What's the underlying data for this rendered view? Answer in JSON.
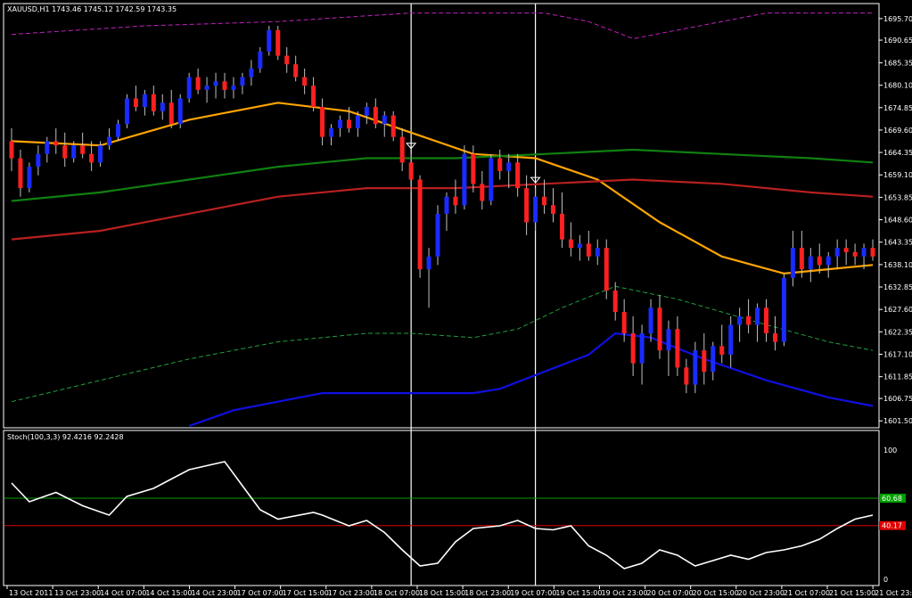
{
  "window": {
    "symbol_header": "XAUUSD,H1  1743.46 1745.12 1742.59 1743.35",
    "stoch_header": "Stoch(100,3,3) 92.4216 92.2428"
  },
  "colors": {
    "background": "#000000",
    "frame": "#ffffff",
    "bull_candle": "#1a2bff",
    "bear_candle": "#ff2020",
    "orange_ma": "#ffa500",
    "green_ma": "#108010",
    "red_ma": "#b82020",
    "magenta_band": "#c020c0",
    "green_band": "#20a040",
    "blue_band": "#1010e0",
    "stoch_line": "#ffffff",
    "level_high": "#00a000",
    "level_low": "#e00000"
  },
  "chart_data": [
    {
      "type": "candlestick",
      "title": "XAUUSD,H1",
      "y_ticks": [
        "1695.70",
        "1690.65",
        "1685.35",
        "1680.10",
        "1674.85",
        "1669.60",
        "1664.35",
        "1659.10",
        "1653.85",
        "1648.60",
        "1643.35",
        "1638.10",
        "1632.85",
        "1627.60",
        "1622.35",
        "1617.10",
        "1611.85",
        "1606.75",
        "1601.50"
      ],
      "ylim": [
        1600.3,
        1698.8
      ],
      "x_ticks": [
        "13 Oct 2011",
        "13 Oct 23:00",
        "14 Oct 07:00",
        "14 Oct 15:00",
        "14 Oct 23:00",
        "17 Oct 07:00",
        "17 Oct 15:00",
        "17 Oct 23:00",
        "18 Oct 07:00",
        "18 Oct 15:00",
        "18 Oct 23:00",
        "19 Oct 07:00",
        "19 Oct 15:00",
        "19 Oct 23:00",
        "20 Oct 07:00",
        "20 Oct 15:00",
        "20 Oct 23:00",
        "21 Oct 07:00",
        "21 Oct 15:00",
        "21 Oct 23:00"
      ],
      "vertical_markers_x_index": [
        45,
        59
      ],
      "series": [
        {
          "kind": "candles",
          "x_index": [
            0,
            1,
            2,
            3,
            4,
            5,
            6,
            7,
            8,
            9,
            10,
            11,
            12,
            13,
            14,
            15,
            16,
            17,
            18,
            19,
            20,
            21,
            22,
            23,
            24,
            25,
            26,
            27,
            28,
            29,
            30,
            31,
            32,
            33,
            34,
            35,
            36,
            37,
            38,
            39,
            40,
            41,
            42,
            43,
            44,
            45,
            46,
            47,
            48,
            49,
            50,
            51,
            52,
            53,
            54,
            55,
            56,
            57,
            58,
            59,
            60,
            61,
            62,
            63,
            64,
            65,
            66,
            67,
            68,
            69,
            70,
            71,
            72,
            73,
            74,
            75,
            76,
            77,
            78,
            79,
            80,
            81,
            82,
            83,
            84,
            85,
            86,
            87,
            88,
            89,
            90,
            91,
            92,
            93,
            94,
            95,
            96,
            97
          ],
          "ohlc": [
            [
              1667,
              1670,
              1660,
              1663
            ],
            [
              1663,
              1665,
              1654,
              1656
            ],
            [
              1656,
              1662,
              1655,
              1661
            ],
            [
              1661,
              1666,
              1659,
              1664
            ],
            [
              1664,
              1668,
              1662,
              1667
            ],
            [
              1667,
              1670,
              1664,
              1666
            ],
            [
              1666,
              1669,
              1661,
              1663
            ],
            [
              1663,
              1667,
              1662,
              1666
            ],
            [
              1666,
              1669,
              1663,
              1664
            ],
            [
              1664,
              1667,
              1660,
              1662
            ],
            [
              1662,
              1667,
              1661,
              1666
            ],
            [
              1666,
              1670,
              1665,
              1668
            ],
            [
              1668,
              1672,
              1667,
              1671
            ],
            [
              1671,
              1678,
              1670,
              1677
            ],
            [
              1677,
              1680,
              1674,
              1675
            ],
            [
              1675,
              1679,
              1673,
              1678
            ],
            [
              1678,
              1680,
              1673,
              1674
            ],
            [
              1674,
              1678,
              1672,
              1676
            ],
            [
              1676,
              1679,
              1670,
              1671
            ],
            [
              1671,
              1678,
              1670,
              1677
            ],
            [
              1677,
              1683,
              1676,
              1682
            ],
            [
              1682,
              1684,
              1678,
              1679
            ],
            [
              1679,
              1682,
              1676,
              1680
            ],
            [
              1680,
              1683,
              1677,
              1681
            ],
            [
              1681,
              1683,
              1677,
              1679
            ],
            [
              1679,
              1682,
              1677,
              1680
            ],
            [
              1680,
              1683,
              1678,
              1682
            ],
            [
              1682,
              1686,
              1680,
              1684
            ],
            [
              1684,
              1689,
              1683,
              1688
            ],
            [
              1688,
              1694,
              1687,
              1693
            ],
            [
              1693,
              1694,
              1686,
              1687
            ],
            [
              1687,
              1689,
              1683,
              1685
            ],
            [
              1685,
              1687,
              1681,
              1682
            ],
            [
              1682,
              1684,
              1678,
              1680
            ],
            [
              1680,
              1682,
              1674,
              1675
            ],
            [
              1675,
              1677,
              1666,
              1668
            ],
            [
              1668,
              1671,
              1666,
              1670
            ],
            [
              1670,
              1673,
              1668,
              1672
            ],
            [
              1672,
              1675,
              1669,
              1670
            ],
            [
              1670,
              1674,
              1668,
              1673
            ],
            [
              1673,
              1676,
              1671,
              1675
            ],
            [
              1675,
              1677,
              1670,
              1671
            ],
            [
              1671,
              1674,
              1668,
              1673
            ],
            [
              1673,
              1674,
              1667,
              1668
            ],
            [
              1668,
              1670,
              1660,
              1662
            ],
            [
              1662,
              1664,
              1655,
              1658
            ],
            [
              1658,
              1659,
              1635,
              1637
            ],
            [
              1637,
              1642,
              1628,
              1640
            ],
            [
              1640,
              1652,
              1638,
              1650
            ],
            [
              1650,
              1655,
              1646,
              1654
            ],
            [
              1654,
              1658,
              1650,
              1652
            ],
            [
              1652,
              1666,
              1651,
              1664
            ],
            [
              1664,
              1666,
              1655,
              1657
            ],
            [
              1657,
              1660,
              1651,
              1653
            ],
            [
              1653,
              1664,
              1652,
              1663
            ],
            [
              1663,
              1665,
              1658,
              1660
            ],
            [
              1660,
              1664,
              1656,
              1662
            ],
            [
              1662,
              1664,
              1654,
              1656
            ],
            [
              1656,
              1659,
              1645,
              1648
            ],
            [
              1648,
              1656,
              1646,
              1654
            ],
            [
              1654,
              1658,
              1650,
              1652
            ],
            [
              1652,
              1656,
              1648,
              1650
            ],
            [
              1650,
              1655,
              1642,
              1644
            ],
            [
              1644,
              1648,
              1640,
              1642
            ],
            [
              1642,
              1645,
              1639,
              1643
            ],
            [
              1643,
              1646,
              1639,
              1640
            ],
            [
              1640,
              1644,
              1638,
              1642
            ],
            [
              1642,
              1644,
              1630,
              1632
            ],
            [
              1632,
              1634,
              1625,
              1627
            ],
            [
              1627,
              1630,
              1620,
              1622
            ],
            [
              1622,
              1626,
              1612,
              1615
            ],
            [
              1615,
              1624,
              1610,
              1622
            ],
            [
              1622,
              1630,
              1620,
              1628
            ],
            [
              1628,
              1631,
              1616,
              1618
            ],
            [
              1618,
              1625,
              1612,
              1623
            ],
            [
              1623,
              1626,
              1612,
              1614
            ],
            [
              1614,
              1616,
              1608,
              1610
            ],
            [
              1610,
              1620,
              1608,
              1618
            ],
            [
              1618,
              1622,
              1610,
              1613
            ],
            [
              1613,
              1620,
              1611,
              1619
            ],
            [
              1619,
              1624,
              1615,
              1617
            ],
            [
              1617,
              1626,
              1614,
              1624
            ],
            [
              1624,
              1628,
              1620,
              1626
            ],
            [
              1626,
              1630,
              1622,
              1624
            ],
            [
              1624,
              1629,
              1620,
              1628
            ],
            [
              1628,
              1630,
              1620,
              1622
            ],
            [
              1622,
              1626,
              1618,
              1620
            ],
            [
              1620,
              1636,
              1619,
              1635
            ],
            [
              1635,
              1646,
              1633,
              1642
            ],
            [
              1642,
              1646,
              1635,
              1637
            ],
            [
              1637,
              1642,
              1634,
              1640
            ],
            [
              1640,
              1643,
              1636,
              1638
            ],
            [
              1638,
              1641,
              1635,
              1640
            ],
            [
              1640,
              1644,
              1637,
              1642
            ],
            [
              1642,
              1644,
              1638,
              1641
            ],
            [
              1641,
              1643,
              1638,
              1640
            ],
            [
              1640,
              1643,
              1637,
              1642
            ],
            [
              1642,
              1644,
              1639,
              1640
            ]
          ]
        },
        {
          "kind": "line",
          "color_key": "orange_ma",
          "x_index": [
            0,
            10,
            20,
            30,
            38,
            45,
            52,
            59,
            66,
            73,
            80,
            87,
            92,
            97
          ],
          "values": [
            1667,
            1666,
            1672,
            1676,
            1674,
            1669,
            1664,
            1663,
            1658,
            1648,
            1640,
            1636,
            1637,
            1638
          ]
        },
        {
          "kind": "line",
          "color_key": "green_ma",
          "x_index": [
            0,
            10,
            20,
            30,
            40,
            50,
            60,
            70,
            80,
            90,
            97
          ],
          "values": [
            1653,
            1655,
            1658,
            1661,
            1663,
            1663,
            1664,
            1665,
            1664,
            1663,
            1662
          ]
        },
        {
          "kind": "line",
          "color_key": "red_ma",
          "x_index": [
            0,
            10,
            20,
            30,
            40,
            50,
            60,
            70,
            80,
            90,
            97
          ],
          "values": [
            1644,
            1646,
            1650,
            1654,
            1656,
            1656,
            1657,
            1658,
            1657,
            1655,
            1654
          ]
        },
        {
          "kind": "dashed",
          "color_key": "magenta_band",
          "x_index": [
            0,
            15,
            30,
            45,
            55,
            60,
            65,
            70,
            75,
            85,
            97
          ],
          "values": [
            1692,
            1694,
            1695,
            1697,
            1697,
            1697,
            1695,
            1691,
            1693,
            1697,
            1697
          ]
        },
        {
          "kind": "dashed",
          "color_key": "green_band",
          "x_index": [
            0,
            10,
            20,
            30,
            40,
            45,
            52,
            57,
            62,
            68,
            75,
            85,
            92,
            97
          ],
          "values": [
            1606,
            1611,
            1616,
            1620,
            1622,
            1622,
            1621,
            1623,
            1628,
            1633,
            1630,
            1624,
            1620,
            1618
          ]
        },
        {
          "kind": "line",
          "color_key": "blue_band",
          "x_index": [
            20,
            25,
            30,
            35,
            40,
            45,
            52,
            55,
            60,
            65,
            68,
            72,
            78,
            85,
            92,
            97
          ],
          "values": [
            1600,
            1604,
            1606,
            1608,
            1608,
            1608,
            1608,
            1609,
            1613,
            1617,
            1622,
            1621,
            1616,
            1611,
            1607,
            1605
          ]
        }
      ]
    },
    {
      "type": "line",
      "title": "Stoch(100,3,3)",
      "ylim": [
        0,
        100
      ],
      "y_ticks": [
        "100",
        "60.68",
        "40.17",
        "0"
      ],
      "levels": [
        {
          "value": 60.68,
          "label": "60.68",
          "color_key": "level_high"
        },
        {
          "value": 40.17,
          "label": "40.17",
          "color_key": "level_low"
        }
      ],
      "series": [
        {
          "kind": "line",
          "color_key": "stoch_line",
          "x_index": [
            0,
            2,
            5,
            8,
            11,
            13,
            16,
            18,
            20,
            24,
            26,
            28,
            30,
            34,
            35,
            38,
            40,
            42,
            44,
            46,
            48,
            50,
            52,
            55,
            57,
            59,
            61,
            63,
            65,
            67,
            69,
            71,
            73,
            75,
            77,
            79,
            81,
            83,
            85,
            87,
            89,
            91,
            93,
            95,
            97
          ],
          "values": [
            72,
            58,
            65,
            55,
            48,
            62,
            68,
            75,
            82,
            88,
            70,
            52,
            45,
            50,
            48,
            40,
            44,
            35,
            22,
            10,
            12,
            28,
            38,
            40,
            44,
            38,
            37,
            40,
            25,
            18,
            8,
            12,
            22,
            18,
            10,
            14,
            18,
            15,
            20,
            22,
            25,
            30,
            38,
            45,
            48
          ]
        }
      ]
    }
  ]
}
